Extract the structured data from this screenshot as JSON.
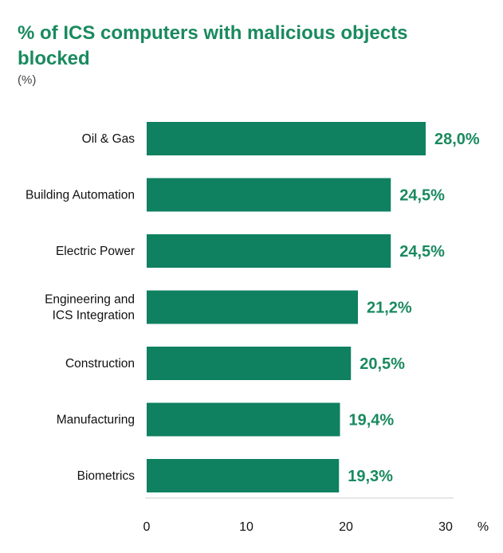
{
  "chart_data": {
    "type": "bar",
    "orientation": "horizontal",
    "title": "% of ICS computers with malicious objects blocked",
    "unit_note": "(%)",
    "categories": [
      [
        "Oil & Gas"
      ],
      [
        "Building Automation"
      ],
      [
        "Electric Power"
      ],
      [
        "Engineering and",
        "ICS Integration"
      ],
      [
        "Construction"
      ],
      [
        "Manufacturing"
      ],
      [
        "Biometrics"
      ]
    ],
    "values": [
      28.0,
      24.5,
      24.5,
      21.2,
      20.5,
      19.4,
      19.3
    ],
    "value_labels": [
      "28,0%",
      "24,5%",
      "24,5%",
      "21,2%",
      "20,5%",
      "19,4%",
      "19,3%"
    ],
    "xlim": [
      0,
      30
    ],
    "xticks": [
      0,
      10,
      20,
      30
    ],
    "xtick_labels": [
      "0",
      "10",
      "20",
      "30"
    ],
    "xaxis_unit": "%",
    "bar_color": "#0f8060",
    "label_color": "#1a8a5e",
    "grid": false
  }
}
